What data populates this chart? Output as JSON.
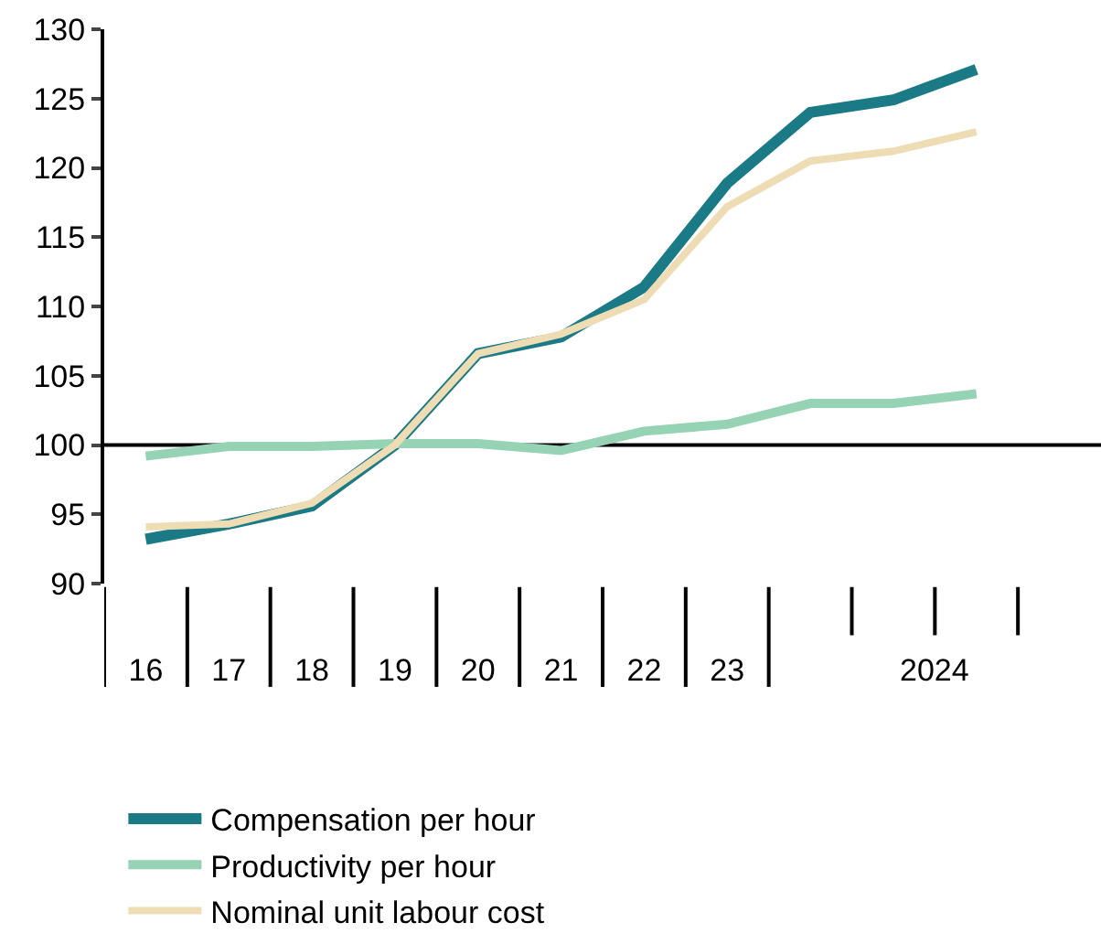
{
  "chart_data": {
    "type": "line",
    "categories": [
      "16",
      "17",
      "18",
      "19",
      "20",
      "21",
      "22",
      "23",
      null,
      null,
      null,
      null
    ],
    "series": [
      {
        "name": "Compensation per hour",
        "color": "#1a7a85",
        "values": [
          93.2,
          94.3,
          95.6,
          100,
          106.6,
          107.8,
          111.4,
          118.9,
          124.0,
          124.9,
          127.1,
          null
        ]
      },
      {
        "name": "Productivity per hour",
        "color": "#96d2b4",
        "values": [
          99.2,
          99.9,
          99.9,
          100.1,
          100.1,
          99.6,
          101.0,
          101.5,
          103.0,
          103.0,
          103.7,
          null
        ]
      },
      {
        "name": "Nominal unit labour cost",
        "color": "#eedcb5",
        "values": [
          94.1,
          94.3,
          95.8,
          100,
          106.6,
          108.0,
          110.5,
          117.2,
          120.5,
          121.2,
          122.6,
          null
        ]
      }
    ],
    "annotations": [
      "2024"
    ],
    "ref_lines": [
      {
        "axis": "y",
        "value": 100,
        "color": "#000000"
      }
    ],
    "ylim": [
      90,
      130
    ],
    "yticks": [
      90,
      95,
      100,
      105,
      110,
      115,
      120,
      125,
      130
    ],
    "grid": false,
    "legend": "bottom",
    "marker": "none",
    "line_style": "solid"
  }
}
